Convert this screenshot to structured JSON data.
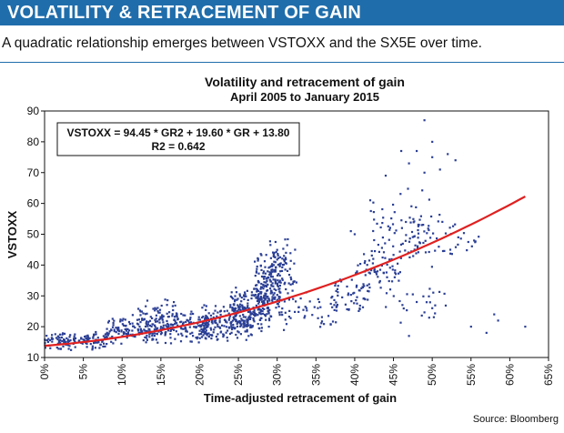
{
  "header": {
    "title": "VOLATILITY & RETRACEMENT OF GAIN",
    "subtitle": "A quadratic relationship emerges between VSTOXX and the SX5E over time."
  },
  "footer": {
    "source": "Source: Bloomberg"
  },
  "colors": {
    "banner": "#1f6dab",
    "points": "#2b3f95",
    "fit": "#e02020"
  },
  "chart_data": {
    "type": "scatter",
    "title": "Volatility and retracement of gain",
    "subtitle": "April 2005 to January 2015",
    "xlabel": "Time-adjusted retracement of gain",
    "ylabel": "VSTOXX",
    "xlim": [
      0,
      0.65
    ],
    "ylim": [
      10,
      90
    ],
    "x_ticks": [
      "0%",
      "5%",
      "10%",
      "15%",
      "20%",
      "25%",
      "30%",
      "35%",
      "40%",
      "45%",
      "50%",
      "55%",
      "60%",
      "65%"
    ],
    "y_ticks": [
      "10",
      "20",
      "30",
      "40",
      "50",
      "60",
      "70",
      "80",
      "90"
    ],
    "grid": false,
    "annotation": {
      "line1": "VSTOXX = 94.45 * GR2 + 19.60 * GR + 13.80",
      "line2": "R2 = 0.642"
    },
    "fit": {
      "a": 94.45,
      "b": 19.6,
      "c": 13.8,
      "x_range": [
        0,
        0.62
      ]
    },
    "clusters": [
      {
        "x0": 0.0,
        "x1": 0.08,
        "ylo": 12,
        "yhi": 19,
        "n": 140
      },
      {
        "x0": 0.08,
        "x1": 0.15,
        "ylo": 14,
        "yhi": 24,
        "n": 140
      },
      {
        "x0": 0.12,
        "x1": 0.17,
        "ylo": 16,
        "yhi": 30,
        "n": 60
      },
      {
        "x0": 0.15,
        "x1": 0.22,
        "ylo": 14,
        "yhi": 26,
        "n": 150
      },
      {
        "x0": 0.2,
        "x1": 0.27,
        "ylo": 15,
        "yhi": 28,
        "n": 180
      },
      {
        "x0": 0.24,
        "x1": 0.29,
        "ylo": 18,
        "yhi": 33,
        "n": 160
      },
      {
        "x0": 0.27,
        "x1": 0.305,
        "ylo": 22,
        "yhi": 45,
        "n": 170
      },
      {
        "x0": 0.29,
        "x1": 0.325,
        "ylo": 30,
        "yhi": 50,
        "n": 70
      },
      {
        "x0": 0.3,
        "x1": 0.38,
        "ylo": 18,
        "yhi": 32,
        "n": 60
      },
      {
        "x0": 0.37,
        "x1": 0.42,
        "ylo": 24,
        "yhi": 36,
        "n": 50
      },
      {
        "x0": 0.4,
        "x1": 0.46,
        "ylo": 30,
        "yhi": 46,
        "n": 60
      },
      {
        "x0": 0.42,
        "x1": 0.5,
        "ylo": 38,
        "yhi": 66,
        "n": 70
      },
      {
        "x0": 0.44,
        "x1": 0.52,
        "ylo": 20,
        "yhi": 34,
        "n": 24
      },
      {
        "x0": 0.46,
        "x1": 0.53,
        "ylo": 42,
        "yhi": 58,
        "n": 40
      },
      {
        "x0": 0.53,
        "x1": 0.56,
        "ylo": 44,
        "yhi": 52,
        "n": 12
      }
    ],
    "extra_points": [
      [
        0.49,
        87
      ],
      [
        0.5,
        80
      ],
      [
        0.46,
        77
      ],
      [
        0.48,
        77
      ],
      [
        0.52,
        76
      ],
      [
        0.53,
        74
      ],
      [
        0.5,
        75
      ],
      [
        0.47,
        73
      ],
      [
        0.51,
        71
      ],
      [
        0.44,
        69
      ],
      [
        0.49,
        70
      ],
      [
        0.42,
        61
      ],
      [
        0.4,
        50
      ],
      [
        0.395,
        51
      ],
      [
        0.58,
        24
      ],
      [
        0.585,
        22
      ],
      [
        0.57,
        18
      ],
      [
        0.62,
        20
      ],
      [
        0.47,
        17
      ],
      [
        0.5,
        26
      ],
      [
        0.48,
        28
      ],
      [
        0.55,
        20
      ]
    ]
  }
}
